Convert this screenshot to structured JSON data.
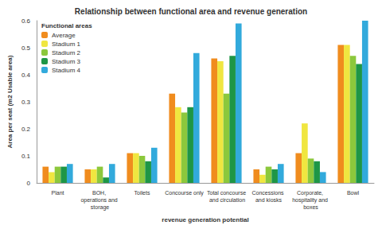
{
  "chart_data": {
    "type": "bar",
    "title": "Relationship between functional area and revenue generation",
    "legend_title": "Functional areas",
    "x_label": "revenue generation potential",
    "y_label": "Area per seat (m2 Usable area)",
    "categories": [
      "Plant",
      "BOH, operations and storage",
      "Toilets",
      "Concourse only",
      "Total concourse and circulation",
      "Concessions and kiosks",
      "Corporate, hospitality and boxes",
      "Bowl"
    ],
    "series": [
      {
        "name": "Average",
        "color": "#f08c1e",
        "values": [
          0.06,
          0.05,
          0.11,
          0.33,
          0.46,
          0.05,
          0.11,
          0.51
        ]
      },
      {
        "name": "Stadium 1",
        "color": "#f0e640",
        "values": [
          0.04,
          0.05,
          0.11,
          0.28,
          0.45,
          0.03,
          0.22,
          0.51
        ]
      },
      {
        "name": "Stadium 2",
        "color": "#8cc83c",
        "values": [
          0.06,
          0.06,
          0.1,
          0.26,
          0.33,
          0.06,
          0.09,
          0.47
        ]
      },
      {
        "name": "Stadium 3",
        "color": "#1e9646",
        "values": [
          0.06,
          0.02,
          0.08,
          0.28,
          0.47,
          0.05,
          0.08,
          0.44
        ]
      },
      {
        "name": "Stadium 4",
        "color": "#32aadc",
        "values": [
          0.07,
          0.07,
          0.13,
          0.48,
          0.59,
          0.07,
          0.04,
          0.6
        ]
      }
    ],
    "ylim": [
      0,
      0.6
    ],
    "yticks": [
      0,
      0.1,
      0.2,
      0.3,
      0.4,
      0.5,
      0.6
    ],
    "grid": false,
    "legend": "upper left"
  }
}
